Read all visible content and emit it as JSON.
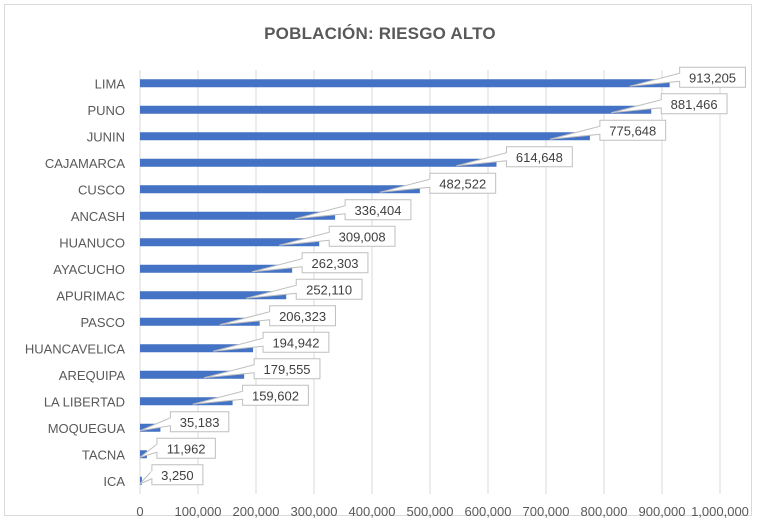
{
  "chart_data": {
    "type": "bar",
    "orientation": "horizontal",
    "title": "POBLACIÓN: RIESGO ALTO",
    "xlabel": "",
    "ylabel": "",
    "xlim": [
      0,
      1000000
    ],
    "x_ticks": [
      "0",
      "100,000",
      "200,000",
      "300,000",
      "400,000",
      "500,000",
      "600,000",
      "700,000",
      "800,000",
      "900,000",
      "1,000,000"
    ],
    "grid": true,
    "bar_color": "#4472C4",
    "categories": [
      "LIMA",
      "PUNO",
      "JUNIN",
      "CAJAMARCA",
      "CUSCO",
      "ANCASH",
      "HUANUCO",
      "AYACUCHO",
      "APURIMAC",
      "PASCO",
      "HUANCAVELICA",
      "AREQUIPA",
      "LA LIBERTAD",
      "MOQUEGUA",
      "TACNA",
      "ICA"
    ],
    "values": [
      913205,
      881466,
      775648,
      614648,
      482522,
      336404,
      309008,
      262303,
      252110,
      206323,
      194942,
      179555,
      159602,
      35183,
      11962,
      3250
    ],
    "data_labels": [
      "913,205",
      "881,466",
      "775,648",
      "614,648",
      "482,522",
      "336,404",
      "309,008",
      "262,303",
      "252,110",
      "206,323",
      "194,942",
      "179,555",
      "159,602",
      "35,183",
      "11,962",
      "3,250"
    ]
  }
}
